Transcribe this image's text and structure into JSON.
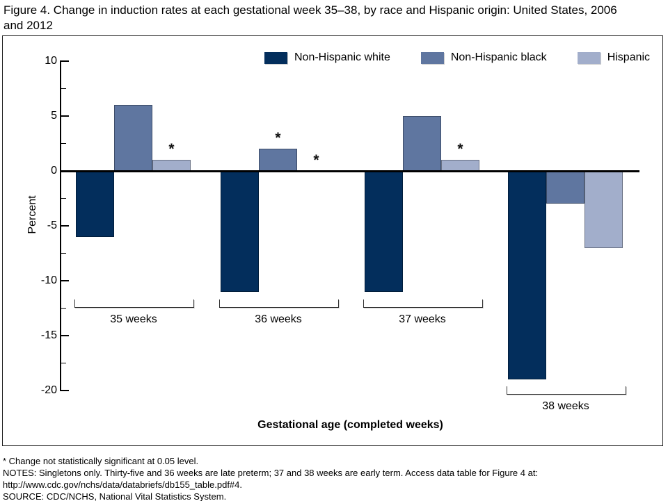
{
  "title_lines": [
    "Figure 4. Change in induction rates at each gestational week 35–38, by race and Hispanic origin: United States, 2006",
    "and 2012"
  ],
  "chart_data": {
    "type": "bar",
    "title": "Figure 4. Change in induction rates at each gestational week 35–38, by race and Hispanic origin: United States, 2006 and 2012",
    "categories": [
      "35 weeks",
      "36 weeks",
      "37 weeks",
      "38 weeks"
    ],
    "series": [
      {
        "name": "Non-Hispanic white",
        "color": "#032E5C",
        "values": [
          -6,
          -11,
          -11,
          -19
        ],
        "significant": [
          true,
          true,
          true,
          true
        ]
      },
      {
        "name": "Non-Hispanic black",
        "color": "#5F76A0",
        "values": [
          6,
          2,
          5,
          -3
        ],
        "significant": [
          true,
          false,
          true,
          true
        ]
      },
      {
        "name": "Hispanic",
        "color": "#A2AECB",
        "values": [
          1,
          0,
          1,
          -7
        ],
        "significant": [
          false,
          false,
          false,
          true
        ]
      }
    ],
    "xlabel": "Gestational age (completed weeks)",
    "ylabel": "Percent",
    "ylim": [
      -20,
      10
    ],
    "yticks": [
      10,
      5,
      0,
      -5,
      -10,
      -15,
      -20
    ],
    "minor_yticks": [
      7.5,
      2.5,
      -2.5,
      -7.5,
      -12.5,
      -17.5
    ],
    "not_significant_marker": "*",
    "legend_position": "top",
    "grid": false
  },
  "footnotes": [
    "* Change not statistically significant at 0.05 level.",
    "NOTES: Singletons only. Thirty-five and 36 weeks are late preterm; 37 and 38 weeks are early term. Access data table for Figure 4 at: http://www.cdc.gov/nchs/data/databriefs/db155_table.pdf#4.",
    "SOURCE: CDC/NCHS, National Vital Statistics System."
  ]
}
